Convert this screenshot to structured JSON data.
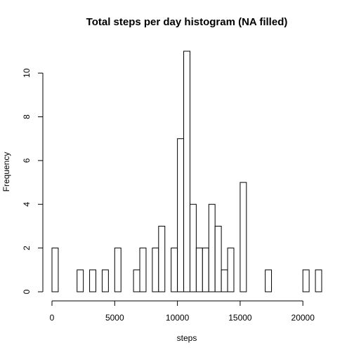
{
  "chart_data": {
    "type": "bar",
    "title": "Total steps per day histogram (NA filled)",
    "xlabel": "steps",
    "ylabel": "Frequency",
    "bin_width": 500,
    "bin_start": 0,
    "counts": [
      2,
      0,
      0,
      0,
      1,
      0,
      1,
      0,
      1,
      0,
      2,
      0,
      0,
      1,
      2,
      0,
      2,
      3,
      0,
      2,
      7,
      11,
      4,
      2,
      2,
      4,
      3,
      1,
      2,
      0,
      5,
      0,
      0,
      0,
      1,
      0,
      0,
      0,
      0,
      0,
      1,
      0,
      1
    ],
    "xlim": [
      0,
      21500
    ],
    "ylim": [
      0,
      11
    ],
    "x_ticks": [
      0,
      5000,
      10000,
      15000,
      20000
    ],
    "y_ticks": [
      0,
      2,
      4,
      6,
      8,
      10
    ],
    "x_tick_labels": [
      "0",
      "5000",
      "10000",
      "15000",
      "20000"
    ],
    "y_tick_labels": [
      "0",
      "2",
      "4",
      "6",
      "8",
      "10"
    ],
    "bar_fill": "#ffffff",
    "bar_stroke": "#000000",
    "grid": false,
    "legend": "none"
  }
}
